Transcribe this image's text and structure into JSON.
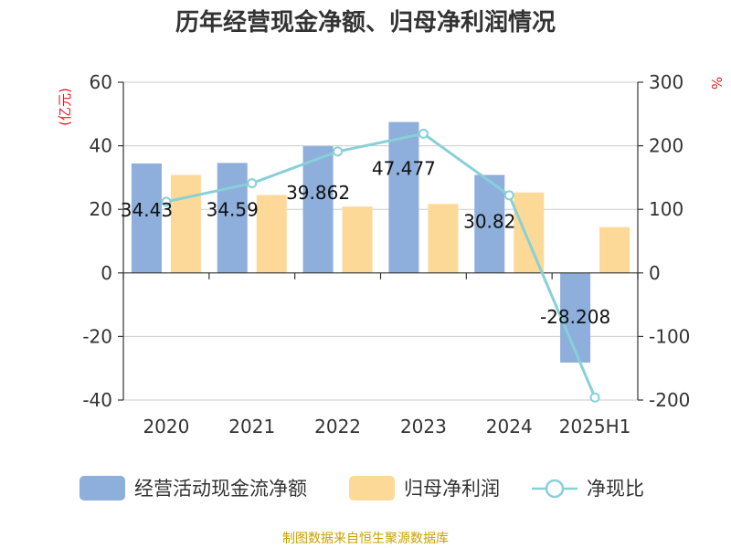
{
  "chart_data": {
    "type": "bar",
    "title": "历年经营现金净额、归母净利润情况",
    "categories": [
      "2020",
      "2021",
      "2022",
      "2023",
      "2024",
      "2025H1"
    ],
    "y_left": {
      "unit": "(亿元)",
      "ticks": [
        60,
        40,
        20,
        0,
        -20,
        -40
      ],
      "range": [
        -40,
        60
      ]
    },
    "y_right": {
      "unit": "%",
      "ticks": [
        300,
        200,
        100,
        0,
        -100,
        -200
      ],
      "range": [
        -200,
        300
      ]
    },
    "series": [
      {
        "name": "经营活动现金流净额",
        "type": "bar",
        "axis": "left",
        "color": "#8eaedb",
        "values": [
          34.43,
          34.59,
          39.86,
          47.48,
          30.82,
          -28.21
        ],
        "labels": [
          "34.43",
          "34.59",
          "39.862",
          "47.477",
          "30.82",
          "-28.208"
        ]
      },
      {
        "name": "归母净利润",
        "type": "bar",
        "axis": "left",
        "color": "#fdd998",
        "values": [
          30.8,
          24.5,
          20.9,
          21.7,
          25.3,
          14.4
        ]
      },
      {
        "name": "净现比",
        "type": "line",
        "axis": "right",
        "color": "#88d0d8",
        "values": [
          112,
          141,
          191,
          219,
          122,
          -196
        ]
      }
    ],
    "legend_position": "bottom",
    "grid": true
  },
  "source": "制图数据来自恒生聚源数据库"
}
